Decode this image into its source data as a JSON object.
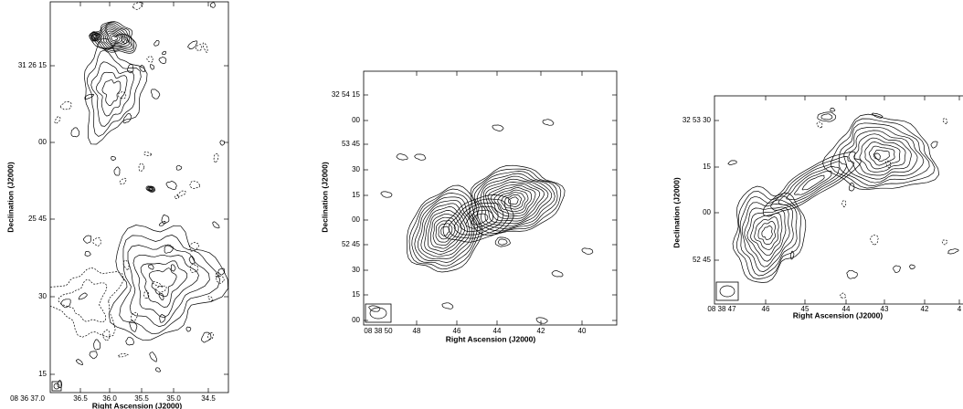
{
  "panels": [
    {
      "x_axis_label": "Right Ascension (J2000)",
      "y_axis_label": "Declination (J2000)",
      "x_tick_labels": [
        "08 36 37.0",
        "36.5",
        "36.0",
        "35.5",
        "35.0",
        "34.5"
      ],
      "y_tick_labels": [
        "31 26 15",
        "00",
        "25 45",
        "30",
        "15"
      ]
    },
    {
      "x_axis_label": "Right Ascension (J2000)",
      "y_axis_label": "Declination (J2000)",
      "x_tick_labels": [
        "08 38 50",
        "48",
        "46",
        "44",
        "42",
        "40"
      ],
      "y_tick_labels": [
        "32 54 15",
        "00",
        "53 45",
        "30",
        "15",
        "00",
        "52 45",
        "30",
        "15",
        "00"
      ]
    },
    {
      "x_axis_label": "Right Ascension (J2000)",
      "y_axis_label": "Declination (J2000)",
      "x_tick_labels": [
        "08 38 47",
        "46",
        "45",
        "44",
        "43",
        "42",
        "4"
      ],
      "y_tick_labels": [
        "32 53 30",
        "15",
        "00",
        "52 45"
      ]
    }
  ]
}
